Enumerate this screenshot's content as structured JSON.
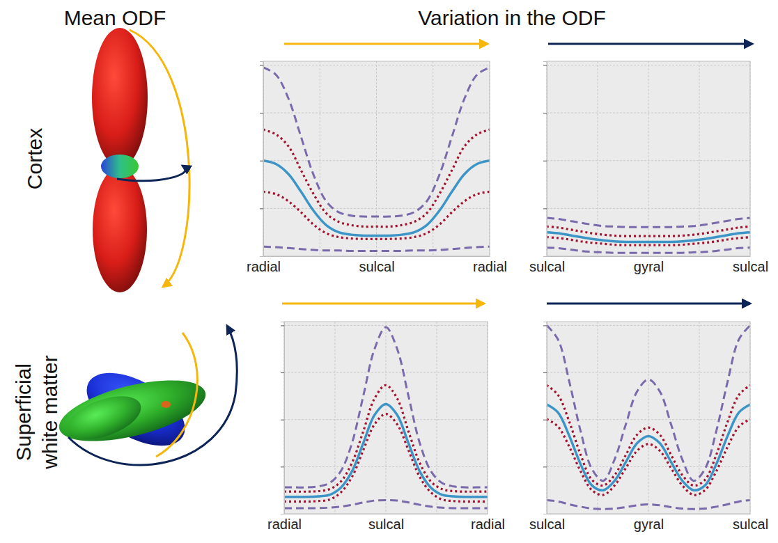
{
  "figure": {
    "column_titles": [
      "Mean ODF",
      "Variation in the ODF"
    ],
    "row_titles": [
      "Cortex",
      "Superficial white matter"
    ]
  },
  "chart_data": [
    {
      "type": "line",
      "grid": true,
      "tick_labels": "x",
      "x": [
        0,
        10,
        20,
        30,
        40,
        50,
        60,
        70,
        80,
        90,
        100,
        110,
        120,
        130,
        140,
        150,
        160,
        170,
        180
      ],
      "xlim": [
        0,
        180
      ],
      "ylim": [
        0,
        4.08
      ],
      "xticks": [
        {
          "value": 0,
          "label": "radial"
        },
        {
          "value": 45,
          "label": null
        },
        {
          "value": 90,
          "label": "sulcal"
        },
        {
          "value": 135,
          "label": null
        },
        {
          "value": 180,
          "label": "radial"
        }
      ],
      "yticks": [
        1,
        2,
        3,
        4
      ],
      "series": [
        {
          "color": "#7b6aab",
          "line_style": "dashed",
          "values": [
            3.95,
            3.8,
            3.3,
            2.5,
            1.7,
            1.15,
            0.92,
            0.85,
            0.83,
            0.83,
            0.83,
            0.85,
            0.92,
            1.15,
            1.7,
            2.5,
            3.3,
            3.8,
            3.95
          ]
        },
        {
          "color": "#7b6aab",
          "line_style": "dashed",
          "values": [
            0.2,
            0.19,
            0.17,
            0.15,
            0.13,
            0.12,
            0.12,
            0.11,
            0.11,
            0.11,
            0.11,
            0.11,
            0.12,
            0.12,
            0.13,
            0.15,
            0.17,
            0.19,
            0.2
          ]
        },
        {
          "color": "#a3122e",
          "line_style": "dotted",
          "values": [
            2.65,
            2.55,
            2.3,
            1.8,
            1.3,
            0.9,
            0.72,
            0.65,
            0.62,
            0.62,
            0.62,
            0.65,
            0.72,
            0.9,
            1.3,
            1.8,
            2.3,
            2.55,
            2.65
          ]
        },
        {
          "color": "#a3122e",
          "line_style": "dotted",
          "values": [
            1.35,
            1.3,
            1.15,
            0.92,
            0.66,
            0.48,
            0.4,
            0.37,
            0.36,
            0.36,
            0.36,
            0.37,
            0.4,
            0.48,
            0.66,
            0.92,
            1.15,
            1.3,
            1.35
          ]
        },
        {
          "color": "#3c95c6",
          "line_style": "solid",
          "values": [
            2.0,
            1.93,
            1.72,
            1.35,
            0.95,
            0.65,
            0.5,
            0.45,
            0.43,
            0.43,
            0.43,
            0.45,
            0.5,
            0.65,
            0.95,
            1.35,
            1.72,
            1.93,
            2.0
          ]
        }
      ]
    },
    {
      "type": "line",
      "grid": true,
      "tick_labels": "x",
      "x": [
        0,
        10,
        20,
        30,
        40,
        50,
        60,
        70,
        80,
        90,
        100,
        110,
        120,
        130,
        140,
        150,
        160,
        170,
        180
      ],
      "xlim": [
        0,
        180
      ],
      "ylim": [
        0,
        4.08
      ],
      "xticks": [
        {
          "value": 0,
          "label": "sulcal"
        },
        {
          "value": 45,
          "label": null
        },
        {
          "value": 90,
          "label": "gyral"
        },
        {
          "value": 135,
          "label": null
        },
        {
          "value": 180,
          "label": "sulcal"
        }
      ],
      "yticks": [
        1,
        2,
        3,
        4
      ],
      "series": [
        {
          "color": "#7b6aab",
          "line_style": "dashed",
          "values": [
            0.8,
            0.78,
            0.74,
            0.7,
            0.66,
            0.63,
            0.62,
            0.61,
            0.61,
            0.61,
            0.61,
            0.61,
            0.62,
            0.63,
            0.66,
            0.7,
            0.74,
            0.78,
            0.8
          ]
        },
        {
          "color": "#7b6aab",
          "line_style": "dashed",
          "values": [
            0.18,
            0.17,
            0.14,
            0.11,
            0.09,
            0.08,
            0.07,
            0.07,
            0.07,
            0.07,
            0.07,
            0.07,
            0.07,
            0.08,
            0.09,
            0.11,
            0.14,
            0.17,
            0.18
          ]
        },
        {
          "color": "#a3122e",
          "line_style": "dotted",
          "values": [
            0.62,
            0.6,
            0.56,
            0.52,
            0.48,
            0.45,
            0.43,
            0.42,
            0.42,
            0.42,
            0.42,
            0.42,
            0.43,
            0.45,
            0.48,
            0.52,
            0.56,
            0.6,
            0.62
          ]
        },
        {
          "color": "#a3122e",
          "line_style": "dotted",
          "values": [
            0.4,
            0.38,
            0.35,
            0.31,
            0.28,
            0.26,
            0.24,
            0.23,
            0.23,
            0.23,
            0.23,
            0.23,
            0.24,
            0.26,
            0.28,
            0.31,
            0.35,
            0.38,
            0.4
          ]
        },
        {
          "color": "#3c95c6",
          "line_style": "solid",
          "values": [
            0.5,
            0.48,
            0.44,
            0.4,
            0.36,
            0.33,
            0.31,
            0.3,
            0.3,
            0.3,
            0.3,
            0.3,
            0.31,
            0.33,
            0.36,
            0.4,
            0.44,
            0.48,
            0.5
          ]
        }
      ]
    },
    {
      "type": "line",
      "grid": true,
      "tick_labels": "x",
      "x": [
        0,
        10,
        20,
        30,
        40,
        50,
        60,
        70,
        80,
        90,
        100,
        110,
        120,
        130,
        140,
        150,
        160,
        170,
        180
      ],
      "xlim": [
        0,
        180
      ],
      "ylim": [
        0,
        4.08
      ],
      "xticks": [
        {
          "value": 0,
          "label": "radial"
        },
        {
          "value": 45,
          "label": null
        },
        {
          "value": 90,
          "label": "sulcal"
        },
        {
          "value": 135,
          "label": null
        },
        {
          "value": 180,
          "label": "radial"
        }
      ],
      "yticks": [
        1,
        2,
        3,
        4
      ],
      "series": [
        {
          "color": "#7b6aab",
          "line_style": "dashed",
          "values": [
            0.56,
            0.56,
            0.56,
            0.58,
            0.65,
            0.9,
            1.5,
            2.5,
            3.5,
            3.96,
            3.5,
            2.5,
            1.5,
            0.9,
            0.65,
            0.58,
            0.56,
            0.56,
            0.56
          ]
        },
        {
          "color": "#7b6aab",
          "line_style": "dashed",
          "values": [
            0.12,
            0.12,
            0.12,
            0.12,
            0.13,
            0.15,
            0.19,
            0.24,
            0.28,
            0.29,
            0.28,
            0.24,
            0.19,
            0.15,
            0.13,
            0.12,
            0.12,
            0.12,
            0.12
          ]
        },
        {
          "color": "#a3122e",
          "line_style": "dotted",
          "values": [
            0.47,
            0.47,
            0.47,
            0.48,
            0.52,
            0.68,
            1.08,
            1.75,
            2.45,
            2.73,
            2.45,
            1.75,
            1.08,
            0.68,
            0.52,
            0.48,
            0.47,
            0.47,
            0.47
          ]
        },
        {
          "color": "#a3122e",
          "line_style": "dotted",
          "values": [
            0.26,
            0.26,
            0.26,
            0.27,
            0.3,
            0.45,
            0.78,
            1.35,
            1.9,
            2.12,
            1.9,
            1.35,
            0.78,
            0.45,
            0.3,
            0.27,
            0.26,
            0.26,
            0.26
          ]
        },
        {
          "color": "#3c95c6",
          "line_style": "solid",
          "values": [
            0.36,
            0.36,
            0.36,
            0.37,
            0.4,
            0.55,
            0.9,
            1.5,
            2.1,
            2.33,
            2.1,
            1.5,
            0.9,
            0.55,
            0.4,
            0.37,
            0.36,
            0.36,
            0.36
          ]
        }
      ]
    },
    {
      "type": "line",
      "grid": true,
      "tick_labels": "x",
      "x": [
        0,
        10,
        20,
        30,
        40,
        50,
        60,
        70,
        80,
        90,
        100,
        110,
        120,
        130,
        140,
        150,
        160,
        170,
        180
      ],
      "xlim": [
        0,
        180
      ],
      "ylim": [
        0,
        4.08
      ],
      "xticks": [
        {
          "value": 0,
          "label": "sulcal"
        },
        {
          "value": 45,
          "label": null
        },
        {
          "value": 90,
          "label": "gyral"
        },
        {
          "value": 135,
          "label": null
        },
        {
          "value": 180,
          "label": "sulcal"
        }
      ],
      "yticks": [
        1,
        2,
        3,
        4
      ],
      "series": [
        {
          "color": "#7b6aab",
          "line_style": "dashed",
          "values": [
            4.0,
            3.7,
            2.8,
            1.75,
            0.95,
            0.7,
            1.15,
            1.9,
            2.6,
            2.85,
            2.6,
            1.9,
            1.15,
            0.7,
            0.95,
            1.75,
            2.8,
            3.7,
            4.0
          ]
        },
        {
          "color": "#7b6aab",
          "line_style": "dashed",
          "values": [
            0.29,
            0.26,
            0.2,
            0.15,
            0.11,
            0.1,
            0.11,
            0.14,
            0.18,
            0.2,
            0.18,
            0.14,
            0.11,
            0.1,
            0.11,
            0.15,
            0.2,
            0.26,
            0.29
          ]
        },
        {
          "color": "#a3122e",
          "line_style": "dotted",
          "values": [
            2.73,
            2.52,
            1.95,
            1.25,
            0.72,
            0.6,
            0.82,
            1.25,
            1.68,
            1.83,
            1.68,
            1.25,
            0.82,
            0.6,
            0.72,
            1.25,
            1.95,
            2.52,
            2.73
          ]
        },
        {
          "color": "#a3122e",
          "line_style": "dotted",
          "values": [
            2.01,
            1.85,
            1.42,
            0.9,
            0.5,
            0.4,
            0.6,
            0.97,
            1.34,
            1.48,
            1.34,
            0.97,
            0.6,
            0.4,
            0.5,
            0.9,
            1.42,
            1.85,
            2.01
          ]
        },
        {
          "color": "#3c95c6",
          "line_style": "solid",
          "values": [
            2.32,
            2.15,
            1.65,
            1.05,
            0.6,
            0.5,
            0.7,
            1.1,
            1.5,
            1.65,
            1.5,
            1.1,
            0.7,
            0.5,
            0.6,
            1.05,
            1.65,
            2.15,
            2.32
          ]
        }
      ]
    }
  ]
}
